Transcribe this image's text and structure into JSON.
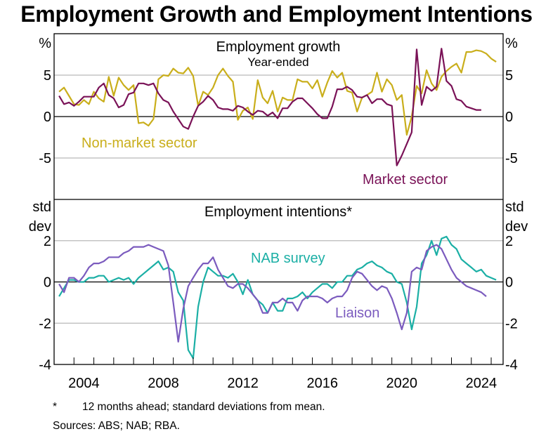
{
  "chart_data": [
    {
      "type": "line",
      "title": "Employment growth",
      "subtitle": "Year-ended",
      "ylabel_left": "%",
      "ylabel_right": "%",
      "ylim": [
        -10,
        10
      ],
      "yticks": [
        5,
        0,
        -5
      ],
      "xlim": [
        2003.0,
        2025.6
      ],
      "x_start": 2003.25,
      "x_step": 0.25,
      "grid": true,
      "series": [
        {
          "name": "Non-market sector",
          "color": "#C9AE1B",
          "values": [
            3.0,
            3.5,
            2.5,
            1.5,
            1.4,
            2.0,
            1.5,
            3.0,
            2.2,
            1.8,
            4.8,
            2.5,
            4.7,
            3.8,
            3.2,
            3.8,
            -0.8,
            -0.7,
            -1.1,
            -0.3,
            4.5,
            5.0,
            4.9,
            5.8,
            5.3,
            5.2,
            5.9,
            4.9,
            1.3,
            3.0,
            2.6,
            3.5,
            5.0,
            5.8,
            4.9,
            4.2,
            -0.4,
            0.7,
            1.1,
            -0.3,
            4.4,
            2.3,
            1.6,
            3.1,
            0.6,
            2.3,
            2.0,
            2.0,
            4.5,
            4.2,
            4.2,
            3.4,
            4.4,
            2.4,
            4.1,
            5.5,
            4.7,
            5.3,
            3.1,
            2.9,
            0.6,
            2.3,
            2.6,
            3.0,
            5.3,
            3.0,
            4.5,
            3.8,
            2.0,
            2.6,
            -2.2,
            0.0,
            3.7,
            2.8,
            5.6,
            4.0,
            3.2,
            4.8,
            5.5,
            6.0,
            6.4,
            5.3,
            7.8,
            7.8,
            8.0,
            7.9,
            7.6,
            7.0,
            6.6
          ]
        },
        {
          "name": "Market sector",
          "color": "#7A1257",
          "values": [
            2.5,
            1.5,
            1.7,
            1.3,
            1.8,
            2.4,
            2.4,
            2.4,
            3.5,
            4.0,
            2.6,
            2.2,
            1.1,
            1.4,
            2.7,
            2.9,
            4.0,
            4.0,
            3.8,
            4.0,
            2.8,
            2.0,
            1.7,
            0.6,
            -0.3,
            -1.2,
            -1.5,
            0.0,
            1.3,
            1.8,
            2.5,
            2.0,
            1.1,
            0.9,
            0.9,
            0.7,
            1.3,
            1.1,
            0.6,
            0.2,
            0.7,
            0.6,
            0.1,
            0.5,
            -0.2,
            1.0,
            1.0,
            1.8,
            2.2,
            2.2,
            1.6,
            1.0,
            0.3,
            -0.2,
            -0.2,
            1.2,
            3.3,
            3.3,
            3.6,
            3.2,
            2.4,
            2.3,
            2.6,
            1.6,
            2.1,
            2.1,
            1.5,
            1.3,
            -5.9,
            -4.7,
            -3.3,
            -1.9,
            8.1,
            1.4,
            3.6,
            3.1,
            3.6,
            8.2,
            4.3,
            3.7,
            2.1,
            1.9,
            1.2,
            1.0,
            0.8,
            0.8
          ]
        }
      ],
      "annotations": [
        "Non-market sector",
        "Market sector"
      ]
    },
    {
      "type": "line",
      "title": "Employment intentions*",
      "ylabel_left": "std dev",
      "ylabel_right": "std dev",
      "ylim": [
        -4,
        4
      ],
      "yticks": [
        2,
        0,
        -2,
        -4
      ],
      "xlim": [
        2003.0,
        2025.6
      ],
      "x_start": 2003.25,
      "x_step": 0.25,
      "grid": true,
      "series": [
        {
          "name": "NAB survey",
          "color": "#1BAFA5",
          "values": [
            -0.7,
            -0.3,
            0.1,
            0.1,
            0.0,
            0.0,
            0.2,
            0.2,
            0.3,
            0.3,
            0.0,
            0.1,
            0.2,
            0.1,
            0.2,
            -0.1,
            0.2,
            0.4,
            0.6,
            0.8,
            1.0,
            0.6,
            0.7,
            0.5,
            -0.5,
            -0.9,
            -3.3,
            -3.7,
            -1.2,
            0.0,
            0.7,
            0.5,
            0.3,
            0.3,
            0.2,
            0.4,
            0.0,
            -0.6,
            0.1,
            -0.6,
            -0.9,
            -1.1,
            -1.5,
            -1.0,
            -1.4,
            -1.4,
            -0.8,
            -0.8,
            -0.7,
            -0.5,
            -0.8,
            -0.5,
            -0.3,
            -0.1,
            -0.1,
            -0.3,
            0.0,
            0.0,
            0.3,
            0.3,
            0.6,
            0.7,
            0.9,
            1.0,
            0.8,
            0.7,
            0.5,
            0.4,
            0.0,
            -0.1,
            -1.0,
            -2.3,
            -1.2,
            0.9,
            1.3,
            2.0,
            1.3,
            2.1,
            2.2,
            1.8,
            1.6,
            1.1,
            0.9,
            0.7,
            0.5,
            0.6,
            0.3,
            0.2,
            0.1
          ]
        },
        {
          "name": "Liaison",
          "color": "#7B5BBE",
          "values": [
            -0.1,
            -0.5,
            0.2,
            0.2,
            0.0,
            0.3,
            0.7,
            0.9,
            0.9,
            1.0,
            1.2,
            1.2,
            1.2,
            1.4,
            1.5,
            1.7,
            1.7,
            1.7,
            1.8,
            1.7,
            1.6,
            1.5,
            0.8,
            -1.0,
            -2.9,
            -1.3,
            -0.2,
            0.2,
            0.6,
            0.9,
            0.9,
            1.2,
            0.6,
            0.2,
            -0.2,
            -0.3,
            -0.1,
            -0.1,
            -0.3,
            -0.6,
            -0.9,
            -1.5,
            -1.5,
            -1.0,
            -1.0,
            -0.8,
            -1.0,
            -1.0,
            -1.4,
            -0.9,
            -0.7,
            -0.7,
            -0.7,
            -0.8,
            -1.0,
            -0.8,
            -0.7,
            -0.7,
            -0.4,
            0.2,
            0.5,
            0.4,
            0.1,
            -0.2,
            -0.4,
            -0.2,
            -0.3,
            -0.8,
            -1.5,
            -2.3,
            -1.5,
            0.5,
            0.7,
            0.6,
            1.5,
            1.7,
            1.8,
            1.6,
            1.1,
            0.6,
            0.2,
            0.0,
            -0.2,
            -0.3,
            -0.4,
            -0.5,
            -0.7
          ]
        }
      ],
      "annotations": [
        "NAB survey",
        "Liaison"
      ]
    }
  ],
  "figure": {
    "title": "Employment Growth and Employment Intentions",
    "x_tick_labels": [
      "2004",
      "2008",
      "2012",
      "2016",
      "2020",
      "2024"
    ],
    "x_tick_label_years": [
      2004,
      2008,
      2012,
      2016,
      2020,
      2024
    ],
    "footnote_marker": "*",
    "footnote_text": "12 months ahead; standard deviations from mean.",
    "sources": "Sources: ABS; NAB; RBA.",
    "ylabel_std": "std",
    "ylabel_dev": "dev"
  }
}
